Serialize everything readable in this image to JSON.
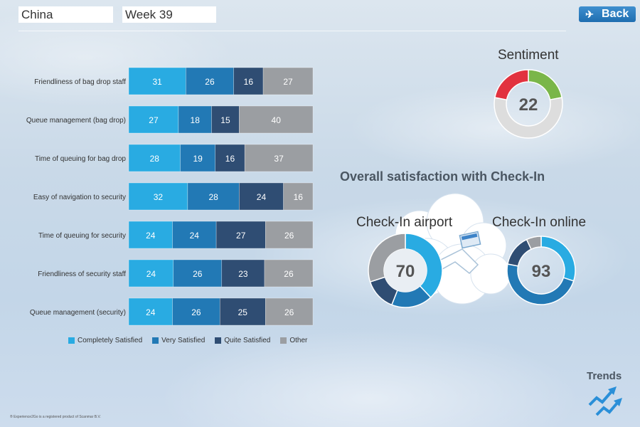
{
  "header": {
    "country": "China",
    "week": "Week 39",
    "back_label": "Back"
  },
  "colors": {
    "completely_satisfied": "#29abe2",
    "very_satisfied": "#2279b5",
    "quite_satisfied": "#2f4d73",
    "other": "#9b9ea2",
    "sentiment_red": "#e2323f",
    "sentiment_green": "#7ab649",
    "sentiment_grey": "#dddddd"
  },
  "chart_data": {
    "type": "bar",
    "stacked": true,
    "orientation": "horizontal",
    "categories": [
      "Friendliness of bag drop staff",
      "Queue management (bag drop)",
      "Time of queuing for bag drop",
      "Easy of navigation to security",
      "Time of queuing for security",
      "Friendliness of security staff",
      "Queue management (security)"
    ],
    "series": [
      {
        "name": "Completely Satisfied",
        "values": [
          31,
          27,
          28,
          32,
          24,
          24,
          24
        ]
      },
      {
        "name": "Very Satisfied",
        "values": [
          26,
          18,
          19,
          28,
          24,
          26,
          26
        ]
      },
      {
        "name": "Quite Satisfied",
        "values": [
          16,
          15,
          16,
          24,
          27,
          23,
          25
        ]
      },
      {
        "name": "Other",
        "values": [
          27,
          40,
          37,
          16,
          26,
          26,
          26
        ]
      }
    ],
    "xlim": [
      0,
      100
    ],
    "legend": "bottom"
  },
  "sentiment": {
    "title": "Sentiment",
    "value": "22",
    "segments": [
      {
        "name": "positive",
        "value": 22,
        "color": "#7ab649"
      },
      {
        "name": "neutral",
        "value": 56,
        "color": "#dddddd"
      },
      {
        "name": "negative",
        "value": 22,
        "color": "#e2323f"
      }
    ]
  },
  "overall": {
    "title": "Overall satisfaction with Check-In",
    "airport": {
      "title": "Check-In airport",
      "value": "70",
      "segments": [
        38,
        18,
        14,
        30
      ]
    },
    "online": {
      "title": "Check-In online",
      "value": "93",
      "segments": [
        30,
        48,
        15,
        7
      ]
    }
  },
  "trends_label": "Trends",
  "footnote": "® Experience2Go is a registered product of Scanmar B.V."
}
